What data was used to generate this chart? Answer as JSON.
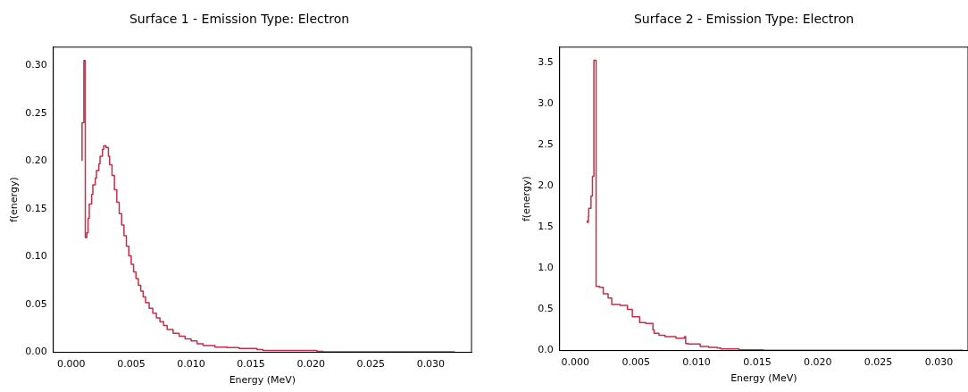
{
  "chart_data": [
    {
      "type": "step",
      "title": "Surface 1 - Emission Type: Electron",
      "xlabel": "Energy (MeV)",
      "ylabel": "f(energy)",
      "x": [
        0.0009,
        0.00105,
        0.00117,
        0.0013,
        0.0014,
        0.0015,
        0.0017,
        0.0018,
        0.002,
        0.0021,
        0.0023,
        0.0024,
        0.0026,
        0.0027,
        0.0029,
        0.0031,
        0.0032,
        0.0034,
        0.0036,
        0.0038,
        0.004,
        0.0042,
        0.0044,
        0.0046,
        0.0048,
        0.005,
        0.0052,
        0.0054,
        0.0056,
        0.0058,
        0.006,
        0.0062,
        0.0065,
        0.0068,
        0.0071,
        0.0074,
        0.0077,
        0.008,
        0.0085,
        0.009,
        0.0095,
        0.01,
        0.0105,
        0.011,
        0.012,
        0.013,
        0.014,
        0.0155,
        0.016,
        0.0205,
        0.021,
        0.022,
        0.032
      ],
      "series": [
        {
          "color": "#c0304a",
          "values": [
            0.2,
            0.24,
            0.305,
            0.12,
            0.125,
            0.14,
            0.155,
            0.165,
            0.175,
            0.182,
            0.19,
            0.197,
            0.205,
            0.212,
            0.216,
            0.214,
            0.205,
            0.196,
            0.185,
            0.17,
            0.157,
            0.145,
            0.133,
            0.122,
            0.111,
            0.101,
            0.092,
            0.084,
            0.077,
            0.07,
            0.064,
            0.058,
            0.052,
            0.046,
            0.041,
            0.036,
            0.032,
            0.028,
            0.024,
            0.02,
            0.017,
            0.014,
            0.012,
            0.009,
            0.007,
            0.0055,
            0.005,
            0.004,
            0.003,
            0.002,
            0.001,
            0.0005,
            0.0005
          ]
        }
      ],
      "xlim": [
        -0.0015,
        0.0334
      ],
      "ylim": [
        0,
        0.319
      ],
      "xticks": [
        {
          "value": 0,
          "label": "0.000"
        },
        {
          "value": 0.005,
          "label": "0.005"
        },
        {
          "value": 0.01,
          "label": "0.010"
        },
        {
          "value": 0.015,
          "label": "0.015"
        },
        {
          "value": 0.02,
          "label": "0.020"
        },
        {
          "value": 0.025,
          "label": "0.025"
        },
        {
          "value": 0.03,
          "label": "0.030"
        }
      ],
      "yticks": [
        {
          "value": 0,
          "label": "0.00"
        },
        0.05,
        {
          "value": 0.1,
          "label": "0.10"
        },
        0.15,
        {
          "value": 0.2,
          "label": "0.20"
        },
        0.25,
        {
          "value": 0.3,
          "label": "0.30"
        }
      ],
      "grid": false,
      "legend": false
    },
    {
      "type": "step",
      "title": "Surface 2 - Emission Type: Electron",
      "xlabel": "Energy (MeV)",
      "ylabel": "f(energy)",
      "x": [
        0.00098,
        0.00107,
        0.0011,
        0.00129,
        0.00141,
        0.00153,
        0.00171,
        0.002,
        0.0023,
        0.0027,
        0.003,
        0.0037,
        0.0043,
        0.0047,
        0.0053,
        0.0058,
        0.0064,
        0.0065,
        0.0069,
        0.0074,
        0.0083,
        0.009,
        0.0091,
        0.0093,
        0.0103,
        0.011,
        0.0117,
        0.012,
        0.0135,
        0.0155,
        0.02,
        0.032
      ],
      "series": [
        {
          "color": "#c0304a",
          "values": [
            1.58,
            1.56,
            1.63,
            1.73,
            1.88,
            2.12,
            3.53,
            0.78,
            0.77,
            0.69,
            0.64,
            0.56,
            0.55,
            0.5,
            0.41,
            0.34,
            0.33,
            0.25,
            0.21,
            0.185,
            0.17,
            0.15,
            0.17,
            0.084,
            0.08,
            0.05,
            0.04,
            0.03,
            0.02,
            0.01,
            0.005,
            0.005
          ]
        }
      ],
      "xlim": [
        -0.0013,
        0.0324
      ],
      "ylim": [
        0,
        3.69
      ],
      "xticks": [
        {
          "value": 0,
          "label": "0.000"
        },
        {
          "value": 0.005,
          "label": "0.005"
        },
        {
          "value": 0.01,
          "label": "0.010"
        },
        {
          "value": 0.015,
          "label": "0.015"
        },
        {
          "value": 0.02,
          "label": "0.020"
        },
        {
          "value": 0.025,
          "label": "0.025"
        },
        {
          "value": 0.03,
          "label": "0.030"
        }
      ],
      "yticks": [
        {
          "value": 0,
          "label": "0.0"
        },
        0.5,
        {
          "value": 1,
          "label": "1.0"
        },
        1.5,
        {
          "value": 2,
          "label": "2.0"
        },
        2.5,
        {
          "value": 3,
          "label": "3.0"
        },
        3.5
      ],
      "grid": false,
      "legend": false
    }
  ]
}
